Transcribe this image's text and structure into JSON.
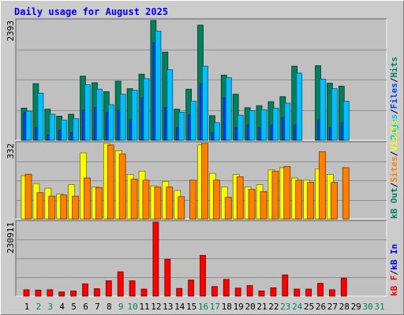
{
  "title": "Daily usage for August 2025",
  "colors": {
    "background": "#CCCCCC",
    "plot": "#C0C0C0",
    "title": "#0000FF",
    "hits": "#00805C",
    "files": "#0040FF",
    "pages": "#00C0FF",
    "visits": "#FFFF00",
    "sites": "#FF8000",
    "kbf": "#FF0000",
    "kbin": "#0000FF",
    "kbout": "#00805C"
  },
  "panels": {
    "top": {
      "max_label": "2393",
      "ymax": 2393,
      "legend": [
        {
          "key": "hits",
          "label": "Hits"
        },
        {
          "key": "files",
          "label": "Files"
        },
        {
          "key": "pages",
          "label": "Pages"
        }
      ]
    },
    "middle": {
      "max_label": "332",
      "ymax": 332,
      "legend": [
        {
          "key": "visits",
          "label": "Visits"
        },
        {
          "key": "sites",
          "label": "Sites"
        },
        {
          "key": "kbout",
          "label": "kB Out"
        }
      ]
    },
    "bottom": {
      "max_label": "230911",
      "ymax": 230911,
      "legend": [
        {
          "key": "kbin",
          "label": "kB In"
        },
        {
          "key": "kbf",
          "label": "kB F"
        }
      ]
    }
  },
  "chart_data": {
    "type": "bar",
    "categories": [
      "1",
      "2",
      "3",
      "4",
      "5",
      "6",
      "7",
      "8",
      "9",
      "10",
      "11",
      "12",
      "13",
      "14",
      "15",
      "16",
      "17",
      "18",
      "19",
      "20",
      "21",
      "22",
      "23",
      "24",
      "25",
      "26",
      "27",
      "28",
      "29",
      "30",
      "31"
    ],
    "weekend_days": [
      2,
      3,
      9,
      10,
      16,
      17,
      23,
      24,
      30,
      31
    ],
    "series": [
      {
        "name": "Hits",
        "panel": "top",
        "values": [
          640,
          1130,
          620,
          480,
          520,
          1280,
          1150,
          970,
          1180,
          1030,
          1320,
          2393,
          1760,
          620,
          1020,
          2300,
          490,
          1300,
          920,
          650,
          690,
          770,
          870,
          1480,
          0,
          1490,
          1140,
          1080,
          0,
          0,
          0
        ]
      },
      {
        "name": "Files",
        "panel": "top",
        "values": [
          550,
          250,
          100,
          200,
          150,
          600,
          650,
          550,
          600,
          400,
          850,
          1950,
          650,
          250,
          500,
          1120,
          150,
          850,
          250,
          300,
          250,
          300,
          450,
          300,
          0,
          400,
          250,
          350,
          0,
          0,
          0
        ]
      },
      {
        "name": "Pages",
        "panel": "top",
        "values": [
          580,
          940,
          520,
          400,
          430,
          1110,
          1020,
          710,
          920,
          1000,
          1230,
          2180,
          1410,
          560,
          780,
          1480,
          350,
          1250,
          500,
          590,
          610,
          640,
          740,
          1340,
          0,
          1220,
          1030,
          780,
          0,
          0,
          0
        ]
      },
      {
        "name": "Visits",
        "panel": "middle",
        "values": [
          190,
          155,
          135,
          110,
          150,
          290,
          140,
          332,
          300,
          195,
          210,
          145,
          165,
          125,
          0,
          325,
          200,
          140,
          195,
          140,
          150,
          215,
          225,
          180,
          170,
          220,
          195,
          0,
          0,
          0,
          0
        ]
      },
      {
        "name": "Sites",
        "panel": "middle",
        "values": [
          196,
          115,
          100,
          105,
          100,
          180,
          138,
          325,
          285,
          175,
          170,
          140,
          140,
          98,
          170,
          332,
          170,
          95,
          185,
          130,
          120,
          210,
          230,
          170,
          160,
          295,
          160,
          225,
          0,
          0,
          0
        ]
      },
      {
        "name": "kB F",
        "panel": "bottom",
        "values": [
          20000,
          19000,
          20000,
          13000,
          16000,
          38000,
          23000,
          48000,
          76000,
          48000,
          22000,
          230911,
          115000,
          24000,
          50000,
          127000,
          30000,
          52000,
          25000,
          33000,
          16000,
          26000,
          66000,
          22000,
          22000,
          40000,
          20000,
          56000,
          0,
          0,
          0
        ]
      }
    ]
  }
}
